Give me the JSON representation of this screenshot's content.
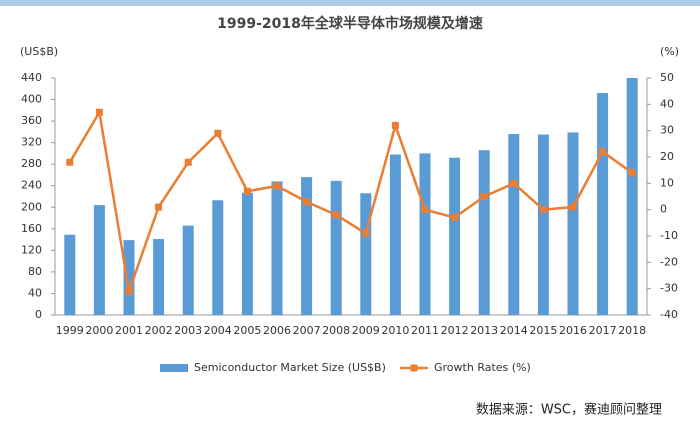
{
  "chart_data": {
    "type": "bar_line",
    "title": "1999-2018年全球半导体市场规模及增速",
    "y_label": "(US$B)",
    "y2_label": "(%)",
    "source": "数据来源：WSC，赛迪顾问整理",
    "categories": [
      "1999",
      "2000",
      "2001",
      "2002",
      "2003",
      "2004",
      "2005",
      "2006",
      "2007",
      "2008",
      "2009",
      "2010",
      "2011",
      "2012",
      "2013",
      "2014",
      "2015",
      "2016",
      "2017",
      "2018"
    ],
    "series": [
      {
        "name": "Semiconductor Market Size (US$B)",
        "type": "bar",
        "color": "#5b9bd5",
        "values": [
          149,
          204,
          139,
          141,
          166,
          213,
          227,
          248,
          256,
          249,
          226,
          298,
          300,
          292,
          306,
          336,
          335,
          339,
          412,
          440
        ]
      },
      {
        "name": "Growth Rates (%)",
        "type": "line",
        "axis": "y2",
        "color": "#ed7d31",
        "values": [
          18,
          37,
          -31,
          1,
          18,
          29,
          7,
          9,
          3,
          -2,
          -9,
          32,
          0,
          -3,
          5,
          10,
          0,
          1,
          22,
          14
        ]
      }
    ],
    "ylim": [
      0,
      440
    ],
    "yticks": [
      0,
      40,
      80,
      120,
      160,
      200,
      240,
      280,
      320,
      360,
      400,
      440
    ],
    "y2lim": [
      -40,
      50
    ],
    "y2ticks": [
      -40,
      -30,
      -20,
      -10,
      0,
      10,
      20,
      30,
      40,
      50
    ],
    "grid": false,
    "legend": "bottom"
  }
}
